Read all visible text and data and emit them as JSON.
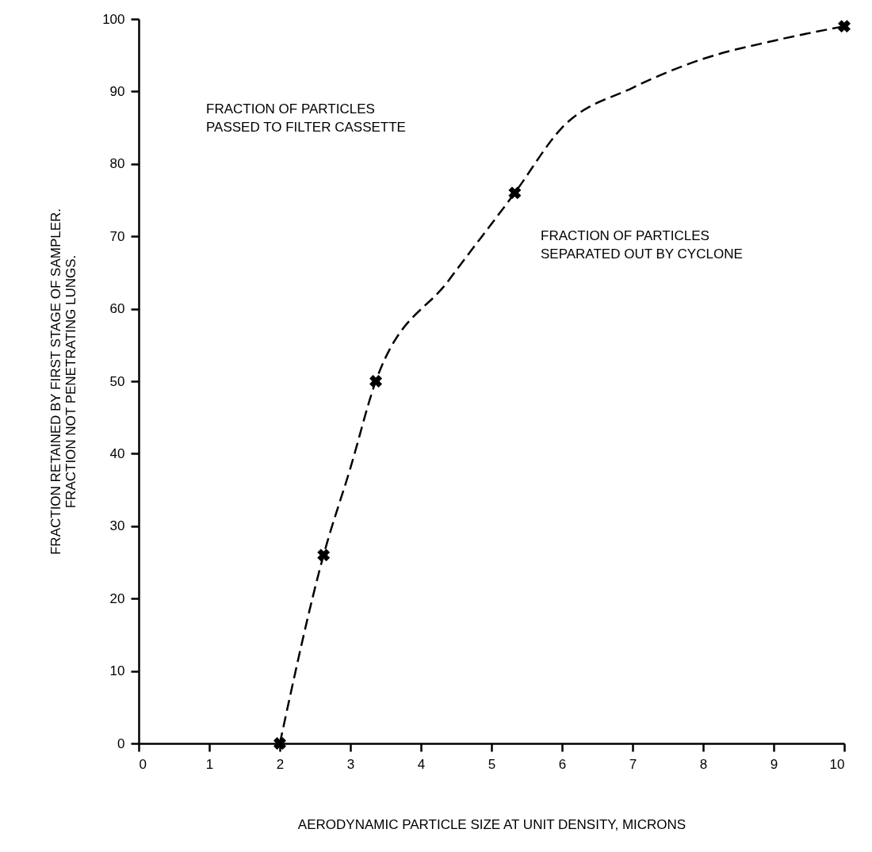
{
  "chart_data": {
    "type": "line",
    "xlabel": "AERODYNAMIC PARTICLE SIZE AT UNIT DENSITY, MICRONS",
    "ylabel": "FRACTION RETAINED BY FIRST STAGE OF SAMPLER.\nFRACTION NOT PENETRATING LUNGS.",
    "xlim": [
      0,
      10
    ],
    "xticks": [
      0,
      1,
      2,
      3,
      4,
      5,
      6,
      7,
      8,
      9,
      10
    ],
    "ylim": [
      0,
      100
    ],
    "yticks": [
      0,
      10,
      20,
      30,
      40,
      50,
      60,
      70,
      80,
      90,
      100
    ],
    "grid": false,
    "series": [
      {
        "type": "line",
        "color": "#000000",
        "line_style": "dashed",
        "marker": "none",
        "x": [
          2,
          2.62,
          3,
          3.36,
          4.4,
          5.33,
          6,
          7,
          8,
          9,
          10
        ],
        "values": [
          0,
          26,
          38,
          50,
          64,
          76,
          85,
          90.5,
          94.5,
          97,
          99
        ]
      },
      {
        "type": "scatter",
        "color": "#000000",
        "marker": "cross",
        "x": [
          2,
          2.62,
          3.36,
          5.33,
          10
        ],
        "values": [
          0,
          26,
          50,
          76,
          99
        ]
      }
    ],
    "annotations": [
      "FRACTION OF PARTICLES\nPASSED TO FILTER CASSETTE",
      "FRACTION OF PARTICLES\nSEPARATED OUT BY CYCLONE"
    ]
  }
}
